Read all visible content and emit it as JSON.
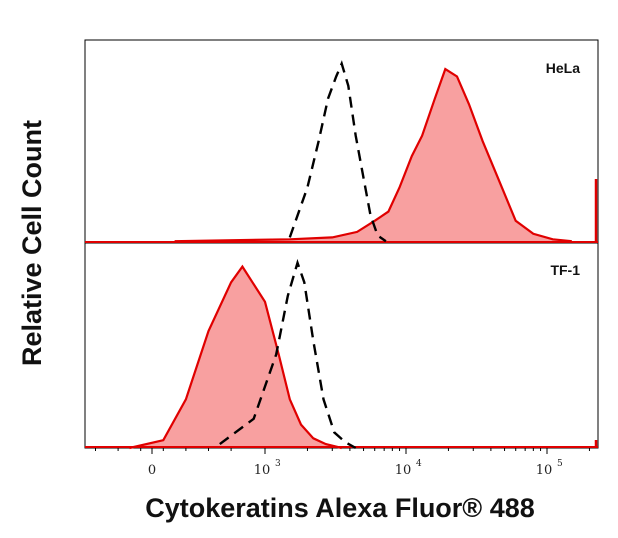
{
  "chart_data": {
    "type": "area",
    "xlabel": "Cytokeratins Alexa Fluor® 488",
    "ylabel": "Relative Cell Count",
    "x_scale": "biexponential",
    "x_ticks": [
      {
        "value": 0,
        "base": "0",
        "exp": ""
      },
      {
        "value": 1000,
        "base": "10",
        "exp": "3"
      },
      {
        "value": 10000,
        "base": "10",
        "exp": "4"
      },
      {
        "value": 100000,
        "base": "10",
        "exp": "5"
      }
    ],
    "panels": [
      {
        "label": "HeLa",
        "series": [
          {
            "style": "filled-red",
            "x": [
              200,
              1500,
              3000,
              4500,
              6000,
              7500,
              9000,
              11000,
              13000,
              16000,
              19000,
              23000,
              28000,
              35000,
              45000,
              60000,
              80000,
              110000,
              150000
            ],
            "y": [
              0.01,
              0.02,
              0.03,
              0.06,
              0.12,
              0.17,
              0.3,
              0.47,
              0.58,
              0.78,
              0.94,
              0.9,
              0.75,
              0.55,
              0.35,
              0.12,
              0.05,
              0.02,
              0.01
            ]
          },
          {
            "style": "dashed-black",
            "x": [
              1500,
              2000,
              2400,
              2800,
              3200,
              3500,
              3900,
              4400,
              5000,
              5600,
              6300,
              7200
            ],
            "y": [
              0.03,
              0.3,
              0.55,
              0.78,
              0.9,
              0.97,
              0.85,
              0.58,
              0.35,
              0.15,
              0.04,
              0.01
            ]
          }
        ]
      },
      {
        "label": "TF-1",
        "series": [
          {
            "style": "filled-red",
            "x": [
              -200,
              100,
              300,
              500,
              700,
              800,
              1000,
              1250,
              1500,
              1800,
              2200,
              2700,
              3500
            ],
            "y": [
              0.0,
              0.04,
              0.25,
              0.6,
              0.85,
              0.93,
              0.75,
              0.48,
              0.25,
              0.12,
              0.05,
              0.02,
              0.0
            ]
          },
          {
            "style": "dashed-black",
            "x": [
              600,
              900,
              1200,
              1450,
              1700,
              1900,
              2200,
              2600,
              3100,
              3700,
              4400
            ],
            "y": [
              0.02,
              0.15,
              0.48,
              0.78,
              0.95,
              0.85,
              0.55,
              0.25,
              0.08,
              0.03,
              0.0
            ]
          }
        ]
      }
    ]
  }
}
